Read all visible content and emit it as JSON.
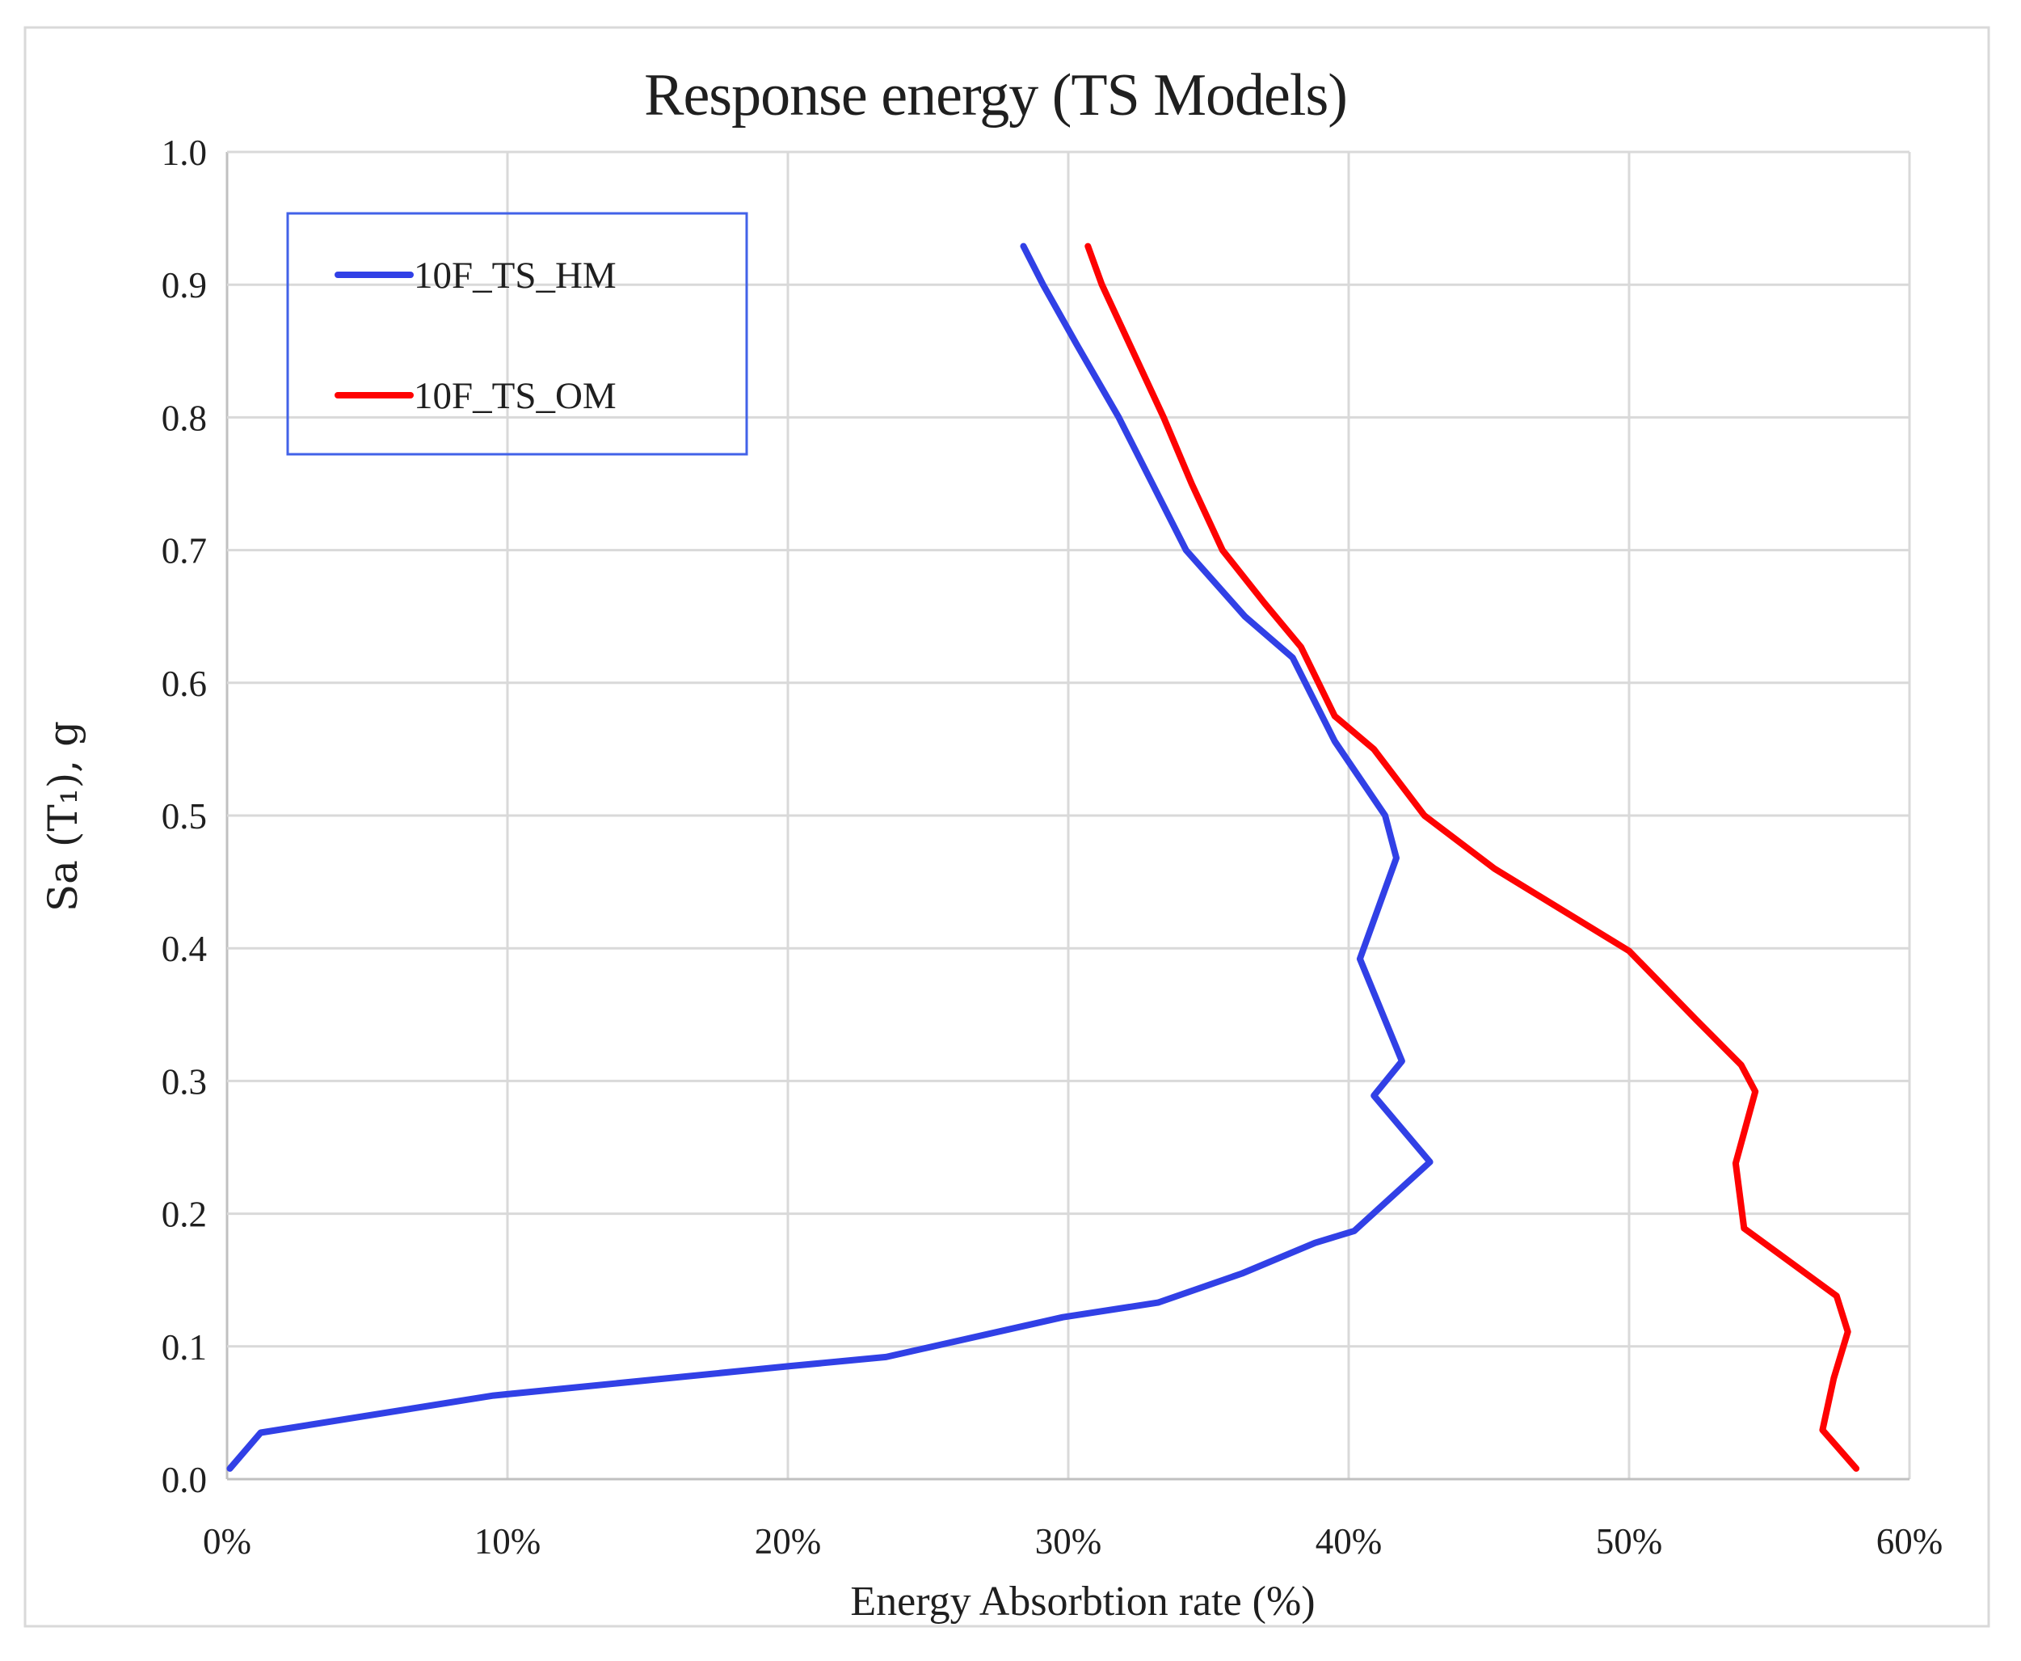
{
  "chart": {
    "title": "Response energy (TS Models)",
    "x_axis_title": "Energy Absorbtion rate (%)",
    "y_axis_title": "Sa (T₁), g",
    "legend": {
      "items": [
        {
          "label": "10F_TS_HM",
          "color": "#3140E6"
        },
        {
          "label": "10F_TS_OM",
          "color": "#FE0202"
        }
      ]
    }
  },
  "colors": {
    "gridline": "#D9D9D9",
    "axis_line": "#C0C0C0",
    "frame_border": "#D9D9D9",
    "legend_border": "#4262E8",
    "text": "#1f1f1f",
    "series_hm": "#3140E6",
    "series_om": "#FE0202"
  },
  "chart_data": {
    "type": "line",
    "title": "Response energy (TS Models)",
    "xlabel": "Energy Absorbtion rate (%)",
    "ylabel": "Sa (T1), g",
    "xlim": [
      0,
      60
    ],
    "ylim": [
      0.0,
      1.0
    ],
    "grid": true,
    "legend_position": "top-left",
    "x_ticks": {
      "values": [
        0,
        10,
        20,
        30,
        40,
        50,
        60
      ],
      "labels": [
        "0%",
        "10%",
        "20%",
        "30%",
        "40%",
        "50%",
        "60%"
      ]
    },
    "y_ticks": {
      "values": [
        0.0,
        0.1,
        0.2,
        0.3,
        0.4,
        0.5,
        0.6,
        0.7,
        0.8,
        0.9,
        1.0
      ],
      "labels": [
        "0.0",
        "0.1",
        "0.2",
        "0.3",
        "0.4",
        "0.5",
        "0.6",
        "0.7",
        "0.8",
        "0.9",
        "1.0"
      ]
    },
    "series": [
      {
        "name": "10F_TS_HM",
        "color": "#3140E6",
        "x_unit": "percent energy absorbtion",
        "y_unit": "Sa(T1) g",
        "points": [
          [
            0.1,
            0.008
          ],
          [
            1.2,
            0.035
          ],
          [
            9.5,
            0.063
          ],
          [
            20.0,
            0.085
          ],
          [
            23.5,
            0.092
          ],
          [
            29.8,
            0.122
          ],
          [
            33.2,
            0.133
          ],
          [
            36.2,
            0.155
          ],
          [
            38.8,
            0.178
          ],
          [
            40.2,
            0.187
          ],
          [
            42.9,
            0.239
          ],
          [
            40.9,
            0.289
          ],
          [
            41.9,
            0.315
          ],
          [
            40.4,
            0.392
          ],
          [
            41.7,
            0.468
          ],
          [
            41.3,
            0.5
          ],
          [
            39.5,
            0.556
          ],
          [
            38.0,
            0.619
          ],
          [
            36.3,
            0.65
          ],
          [
            34.2,
            0.7
          ],
          [
            33.0,
            0.75
          ],
          [
            31.8,
            0.8
          ],
          [
            30.3,
            0.855
          ],
          [
            29.1,
            0.9
          ],
          [
            28.4,
            0.929
          ]
        ]
      },
      {
        "name": "10F_TS_OM",
        "color": "#FE0202",
        "x_unit": "percent energy absorbtion",
        "y_unit": "Sa(T1) g",
        "points": [
          [
            58.1,
            0.008
          ],
          [
            56.9,
            0.037
          ],
          [
            57.3,
            0.076
          ],
          [
            57.8,
            0.111
          ],
          [
            57.4,
            0.138
          ],
          [
            54.1,
            0.189
          ],
          [
            53.8,
            0.238
          ],
          [
            54.5,
            0.292
          ],
          [
            54.0,
            0.312
          ],
          [
            52.4,
            0.346
          ],
          [
            50.0,
            0.398
          ],
          [
            45.2,
            0.46
          ],
          [
            42.7,
            0.5
          ],
          [
            40.9,
            0.55
          ],
          [
            39.5,
            0.575
          ],
          [
            38.3,
            0.627
          ],
          [
            37.0,
            0.66
          ],
          [
            35.5,
            0.7
          ],
          [
            34.4,
            0.75
          ],
          [
            33.4,
            0.8
          ],
          [
            32.3,
            0.85
          ],
          [
            31.2,
            0.9
          ],
          [
            30.7,
            0.929
          ]
        ]
      }
    ]
  }
}
